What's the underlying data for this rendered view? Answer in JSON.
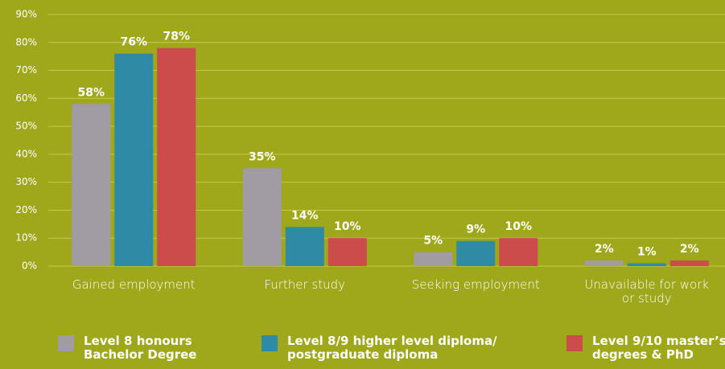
{
  "chart_data": {
    "type": "bar",
    "categories": [
      "Gained employment",
      "Further study",
      "Seeking employment",
      "Unavailable for work or study"
    ],
    "series": [
      {
        "name": "Level 8 honours Bachelor Degree",
        "color": "#a19ca3",
        "values": [
          58,
          35,
          5,
          2
        ],
        "value_labels": [
          "58%",
          "35%",
          "5%",
          "2%"
        ]
      },
      {
        "name": "Level 8/9 higher level diploma/ postgraduate diploma",
        "color": "#2f8aa6",
        "values": [
          76,
          14,
          9,
          1
        ],
        "value_labels": [
          "76%",
          "14%",
          "9%",
          "1%"
        ]
      },
      {
        "name": "Level 9/10 master’s degrees & PhD",
        "color": "#cc4b4b",
        "values": [
          78,
          10,
          10,
          2
        ],
        "value_labels": [
          "78%",
          "10%",
          "10%",
          "2%"
        ]
      }
    ],
    "ylim": [
      0,
      90
    ],
    "yticks": [
      {
        "value": 0,
        "label": "0%"
      },
      {
        "value": 10,
        "label": "10%"
      },
      {
        "value": 20,
        "label": "20%"
      },
      {
        "value": 30,
        "label": "30%"
      },
      {
        "value": 40,
        "label": "40%"
      },
      {
        "value": 50,
        "label": "50%"
      },
      {
        "value": 60,
        "label": "60%"
      },
      {
        "value": 70,
        "label": "70%"
      },
      {
        "value": 80,
        "label": "80%"
      },
      {
        "value": 90,
        "label": "90%"
      }
    ],
    "grid": true,
    "legend": "bottom"
  }
}
